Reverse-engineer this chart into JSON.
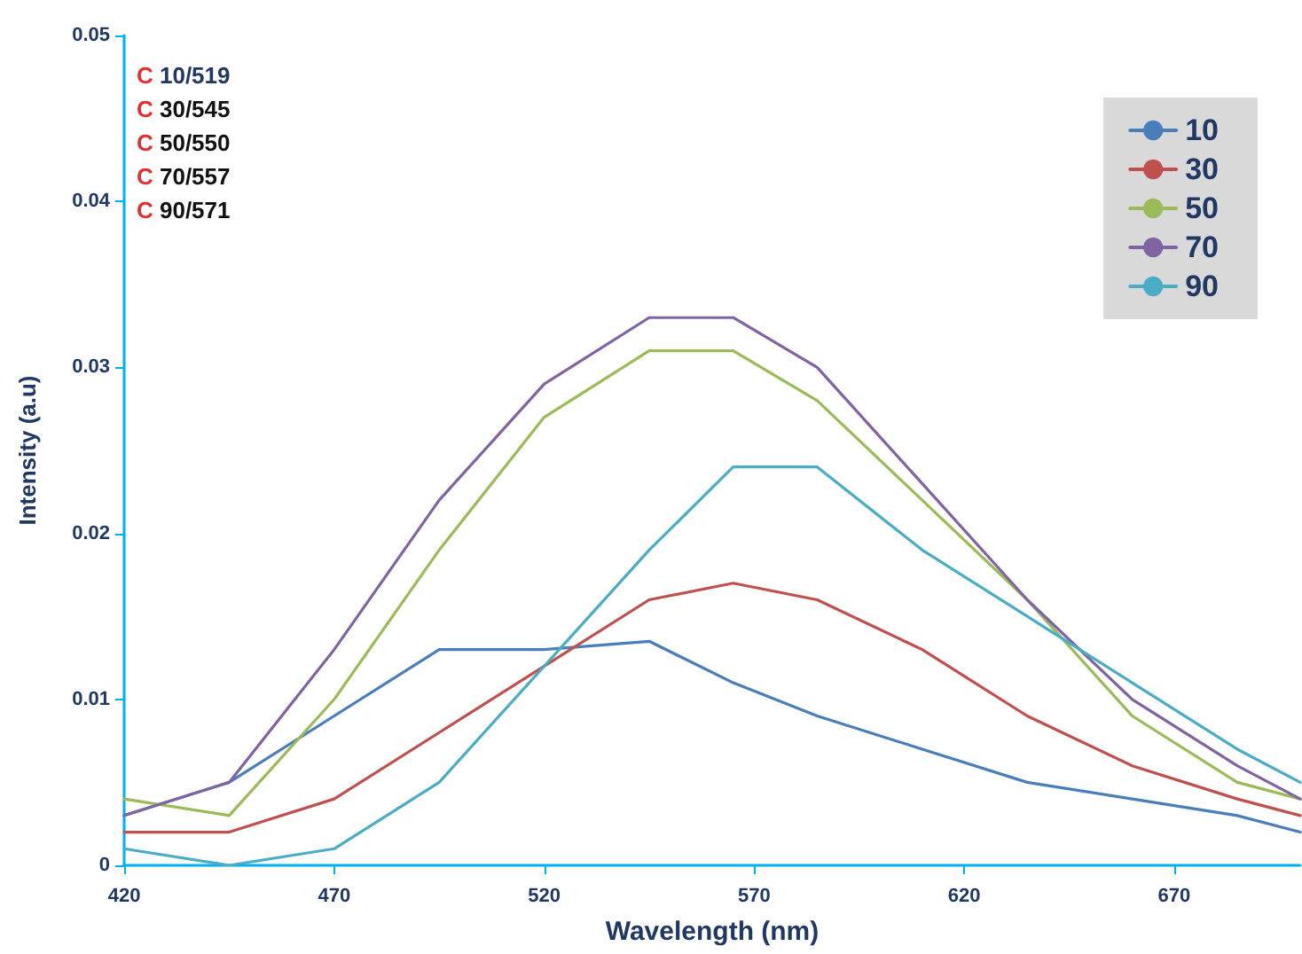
{
  "chart_data": {
    "type": "line",
    "xlabel": "Wavelength (nm)",
    "ylabel": "Intensity (a.u)",
    "annotations": [
      "C 10/519",
      "C 30/545",
      "C 50/550",
      "C 70/557",
      "C 90/571"
    ],
    "x": [
      420,
      445,
      470,
      495,
      520,
      545,
      565,
      585,
      610,
      635,
      660,
      685,
      700
    ],
    "series": [
      {
        "name": "10",
        "color": "#4a7ebb",
        "values": [
          0.003,
          0.005,
          0.009,
          0.013,
          0.013,
          0.0135,
          0.011,
          0.009,
          0.007,
          0.005,
          0.004,
          0.003,
          0.002
        ]
      },
      {
        "name": "30",
        "color": "#c0504d",
        "values": [
          0.002,
          0.002,
          0.004,
          0.008,
          0.012,
          0.016,
          0.017,
          0.016,
          0.013,
          0.009,
          0.006,
          0.004,
          0.003
        ]
      },
      {
        "name": "50",
        "color": "#9bbb59",
        "values": [
          0.004,
          0.003,
          0.01,
          0.019,
          0.027,
          0.031,
          0.031,
          0.028,
          0.022,
          0.016,
          0.009,
          0.005,
          0.004
        ]
      },
      {
        "name": "70",
        "color": "#8064a2",
        "values": [
          0.003,
          0.005,
          0.013,
          0.022,
          0.029,
          0.033,
          0.033,
          0.03,
          0.023,
          0.016,
          0.01,
          0.006,
          0.004
        ]
      },
      {
        "name": "90",
        "color": "#4bacc6",
        "values": [
          0.001,
          0.0,
          0.001,
          0.005,
          0.012,
          0.019,
          0.024,
          0.024,
          0.019,
          0.015,
          0.011,
          0.007,
          0.005
        ]
      }
    ],
    "xlim": [
      420,
      700
    ],
    "xticks": [
      420,
      470,
      520,
      570,
      620,
      670
    ],
    "ylim": [
      0,
      0.05
    ],
    "yticks": [
      0,
      0.01,
      0.02,
      0.03,
      0.04,
      0.05
    ],
    "grid": false,
    "legend": "top right",
    "marker": "none",
    "line_style": "solid"
  }
}
